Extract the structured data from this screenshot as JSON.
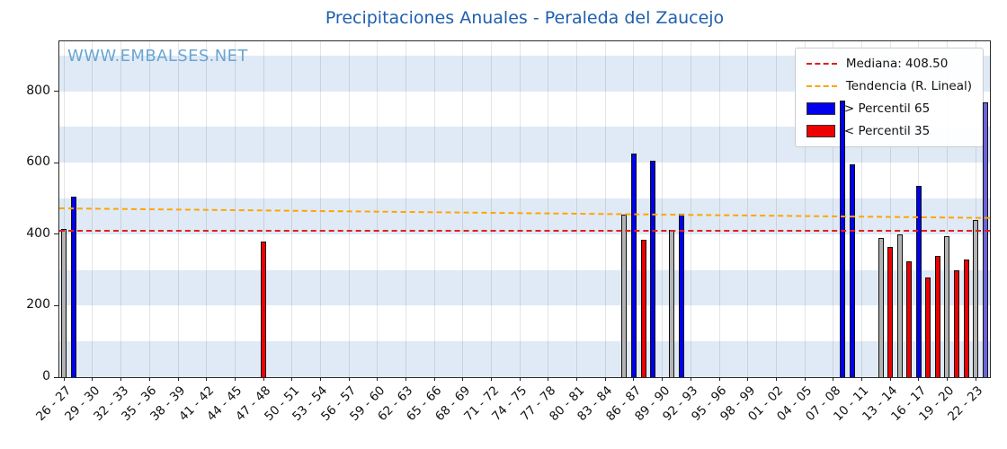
{
  "title": "Precipitaciones Anuales - Peraleda del Zaucejo",
  "watermark": "WWW.EMBALSES.NET",
  "legend": {
    "median_label": "Mediana: 408.50",
    "trend_label": "Tendencia (R. Lineal)",
    "p65_label": "> Percentil 65",
    "p35_label": "< Percentil 35"
  },
  "colors": {
    "title": "#1f5fae",
    "watermark": "#6aa5d2",
    "stripe": "#dfeaf6",
    "bar_blue": "#0000ee",
    "bar_red": "#ee0000",
    "bar_gray": "#b3b3b3",
    "bar_purple": "#6c63d9",
    "median": "#e02020",
    "trend": "#ffa500"
  },
  "chart_data": {
    "type": "bar",
    "title": "Precipitaciones Anuales - Peraleda del Zaucejo",
    "xlabel": "",
    "ylabel": "",
    "ylim": [
      0,
      940
    ],
    "yticks": [
      0,
      200,
      400,
      600,
      800
    ],
    "grid": true,
    "legend_position": "upper right",
    "n_categories": 98,
    "xtick_indices": [
      0,
      3,
      6,
      9,
      12,
      15,
      18,
      21,
      24,
      27,
      30,
      33,
      36,
      39,
      42,
      45,
      48,
      51,
      54,
      57,
      60,
      63,
      66,
      69,
      72,
      75,
      78,
      81,
      84,
      87,
      90,
      93,
      96
    ],
    "xtick_labels": [
      "26 - 27",
      "29 - 30",
      "32 - 33",
      "35 - 36",
      "38 - 39",
      "41 - 42",
      "44 - 45",
      "47 - 48",
      "50 - 51",
      "53 - 54",
      "56 - 57",
      "59 - 60",
      "62 - 63",
      "65 - 66",
      "68 - 69",
      "71 - 72",
      "74 - 75",
      "77 - 78",
      "80 - 81",
      "83 - 84",
      "86 - 87",
      "89 - 90",
      "92 - 93",
      "95 - 96",
      "98 - 99",
      "01 - 02",
      "04 - 05",
      "07 - 08",
      "10 - 11",
      "13 - 14",
      "16 - 17",
      "19 - 20",
      "22 - 23"
    ],
    "median": 408.5,
    "trend_line": {
      "start_value": 472,
      "end_value": 445
    },
    "bars": [
      {
        "index": 0,
        "season": "1926-27",
        "value": 415,
        "color": "gray"
      },
      {
        "index": 1,
        "season": "1927-28",
        "value": 505,
        "color": "blue"
      },
      {
        "index": 21,
        "season": "1947-48",
        "value": 380,
        "color": "red"
      },
      {
        "index": 59,
        "season": "1985-86",
        "value": 455,
        "color": "gray"
      },
      {
        "index": 60,
        "season": "1986-87",
        "value": 625,
        "color": "blue"
      },
      {
        "index": 61,
        "season": "1987-88",
        "value": 385,
        "color": "red"
      },
      {
        "index": 62,
        "season": "1988-89",
        "value": 605,
        "color": "blue"
      },
      {
        "index": 64,
        "season": "1990-91",
        "value": 412,
        "color": "gray"
      },
      {
        "index": 65,
        "season": "1991-92",
        "value": 458,
        "color": "blue"
      },
      {
        "index": 82,
        "season": "2008-09",
        "value": 775,
        "color": "blue"
      },
      {
        "index": 83,
        "season": "2009-10",
        "value": 595,
        "color": "blue"
      },
      {
        "index": 86,
        "season": "2012-13",
        "value": 390,
        "color": "gray"
      },
      {
        "index": 87,
        "season": "2013-14",
        "value": 365,
        "color": "red"
      },
      {
        "index": 88,
        "season": "2014-15",
        "value": 400,
        "color": "gray"
      },
      {
        "index": 89,
        "season": "2015-16",
        "value": 325,
        "color": "red"
      },
      {
        "index": 90,
        "season": "2016-17",
        "value": 535,
        "color": "blue"
      },
      {
        "index": 91,
        "season": "2017-18",
        "value": 280,
        "color": "red"
      },
      {
        "index": 92,
        "season": "2018-19",
        "value": 340,
        "color": "red"
      },
      {
        "index": 93,
        "season": "2019-20",
        "value": 395,
        "color": "gray"
      },
      {
        "index": 94,
        "season": "2020-21",
        "value": 300,
        "color": "red"
      },
      {
        "index": 95,
        "season": "2021-22",
        "value": 330,
        "color": "red"
      },
      {
        "index": 96,
        "season": "2022-23",
        "value": 440,
        "color": "gray"
      },
      {
        "index": 97,
        "season": "2023-24",
        "value": 770,
        "color": "purple"
      }
    ]
  }
}
